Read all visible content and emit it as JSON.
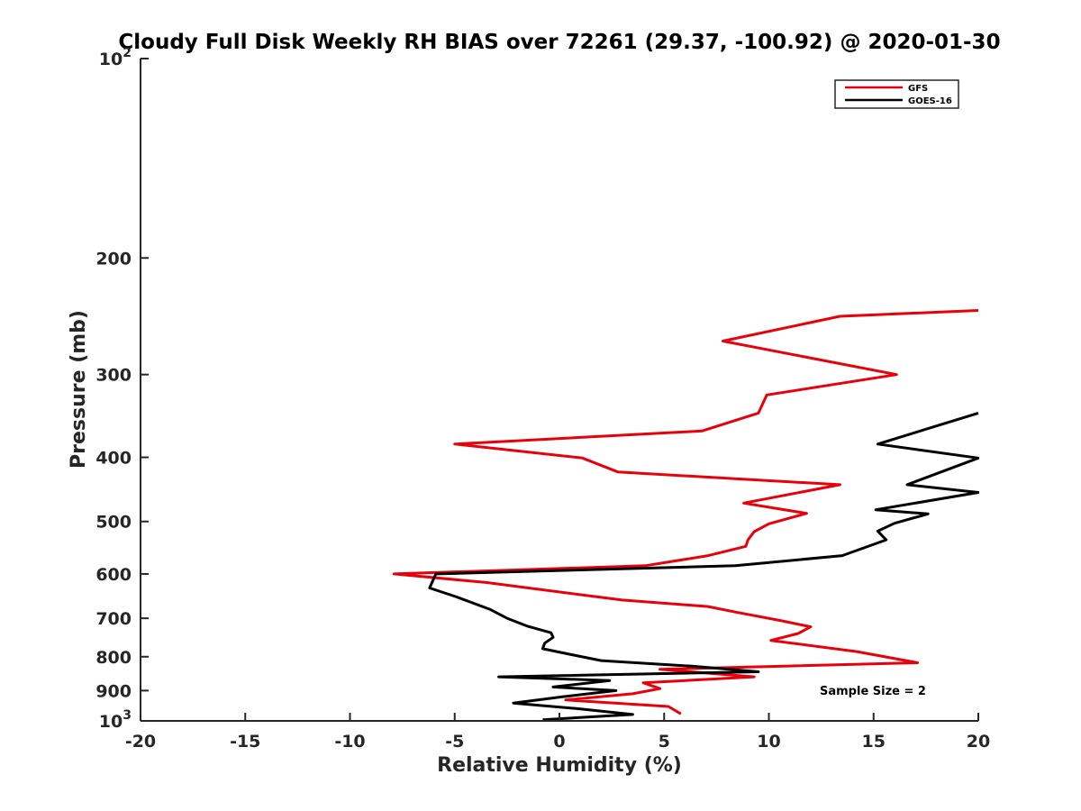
{
  "chart_data": {
    "type": "line",
    "title": "Cloudy Full Disk Weekly RH BIAS over 72261 (29.37, -100.92) @ 2020-01-30",
    "xlabel": "Relative Humidity (%)",
    "ylabel": "Pressure (mb)",
    "xlim": [
      -20,
      20
    ],
    "ylim": [
      100,
      1000
    ],
    "y_scale": "log",
    "y_reversed": true,
    "grid": false,
    "legend_position": "top-right",
    "annotation": "Sample Size = 2",
    "x_ticks": [
      "-20",
      "-15",
      "-10",
      "-5",
      "0",
      "5",
      "10",
      "15",
      "20"
    ],
    "y_ticks": [
      {
        "value": 100,
        "base": "10",
        "exp": "2"
      },
      {
        "value": 200,
        "label": "200"
      },
      {
        "value": 300,
        "label": "300"
      },
      {
        "value": 400,
        "label": "400"
      },
      {
        "value": 500,
        "label": "500"
      },
      {
        "value": 600,
        "label": "600"
      },
      {
        "value": 700,
        "label": "700"
      },
      {
        "value": 800,
        "label": "800"
      },
      {
        "value": 900,
        "label": "900"
      },
      {
        "value": 1000,
        "base": "10",
        "exp": "3"
      }
    ],
    "series": [
      {
        "name": "GFS",
        "color": "#e8000b",
        "points": [
          [
            20.0,
            240
          ],
          [
            13.4,
            245
          ],
          [
            7.8,
            267
          ],
          [
            16.1,
            300
          ],
          [
            9.9,
            322
          ],
          [
            9.5,
            343
          ],
          [
            6.8,
            365
          ],
          [
            -5.0,
            382
          ],
          [
            1.1,
            401
          ],
          [
            2.8,
            421
          ],
          [
            13.4,
            440
          ],
          [
            8.8,
            469
          ],
          [
            11.8,
            486
          ],
          [
            10.0,
            504
          ],
          [
            9.3,
            518
          ],
          [
            9.0,
            533
          ],
          [
            8.9,
            545
          ],
          [
            7.1,
            563
          ],
          [
            4.1,
            583
          ],
          [
            -7.9,
            600
          ],
          [
            -3.5,
            618
          ],
          [
            3.0,
            657
          ],
          [
            7.1,
            672
          ],
          [
            8.4,
            685
          ],
          [
            10.6,
            706
          ],
          [
            12.0,
            721
          ],
          [
            11.4,
            738
          ],
          [
            10.1,
            756
          ],
          [
            14.2,
            786
          ],
          [
            17.1,
            817
          ],
          [
            4.8,
            836
          ],
          [
            9.3,
            858
          ],
          [
            4.0,
            876
          ],
          [
            4.8,
            894
          ],
          [
            3.5,
            910
          ],
          [
            0.3,
            930
          ],
          [
            5.2,
            951
          ],
          [
            5.8,
            976
          ]
        ]
      },
      {
        "name": "GOES-16",
        "color": "#000000",
        "points": [
          [
            20.0,
            343
          ],
          [
            15.2,
            382
          ],
          [
            20.0,
            401
          ],
          [
            16.6,
            440
          ],
          [
            20.0,
            452
          ],
          [
            15.1,
            480
          ],
          [
            17.6,
            487
          ],
          [
            16.0,
            503
          ],
          [
            15.2,
            517
          ],
          [
            15.6,
            533
          ],
          [
            13.5,
            563
          ],
          [
            8.4,
            583
          ],
          [
            -5.9,
            600
          ],
          [
            -6.2,
            630
          ],
          [
            -4.9,
            650
          ],
          [
            -3.3,
            679
          ],
          [
            -2.5,
            700
          ],
          [
            -1.5,
            720
          ],
          [
            -0.4,
            736
          ],
          [
            -0.3,
            748
          ],
          [
            -0.7,
            763
          ],
          [
            -0.8,
            778
          ],
          [
            0.9,
            798
          ],
          [
            2.0,
            811
          ],
          [
            6.4,
            827
          ],
          [
            9.5,
            843
          ],
          [
            -2.9,
            858
          ],
          [
            2.4,
            869
          ],
          [
            -0.3,
            889
          ],
          [
            2.7,
            900
          ],
          [
            0.1,
            920
          ],
          [
            -2.2,
            940
          ],
          [
            0.8,
            958
          ],
          [
            3.5,
            978
          ],
          [
            -0.8,
            996
          ]
        ]
      }
    ]
  }
}
